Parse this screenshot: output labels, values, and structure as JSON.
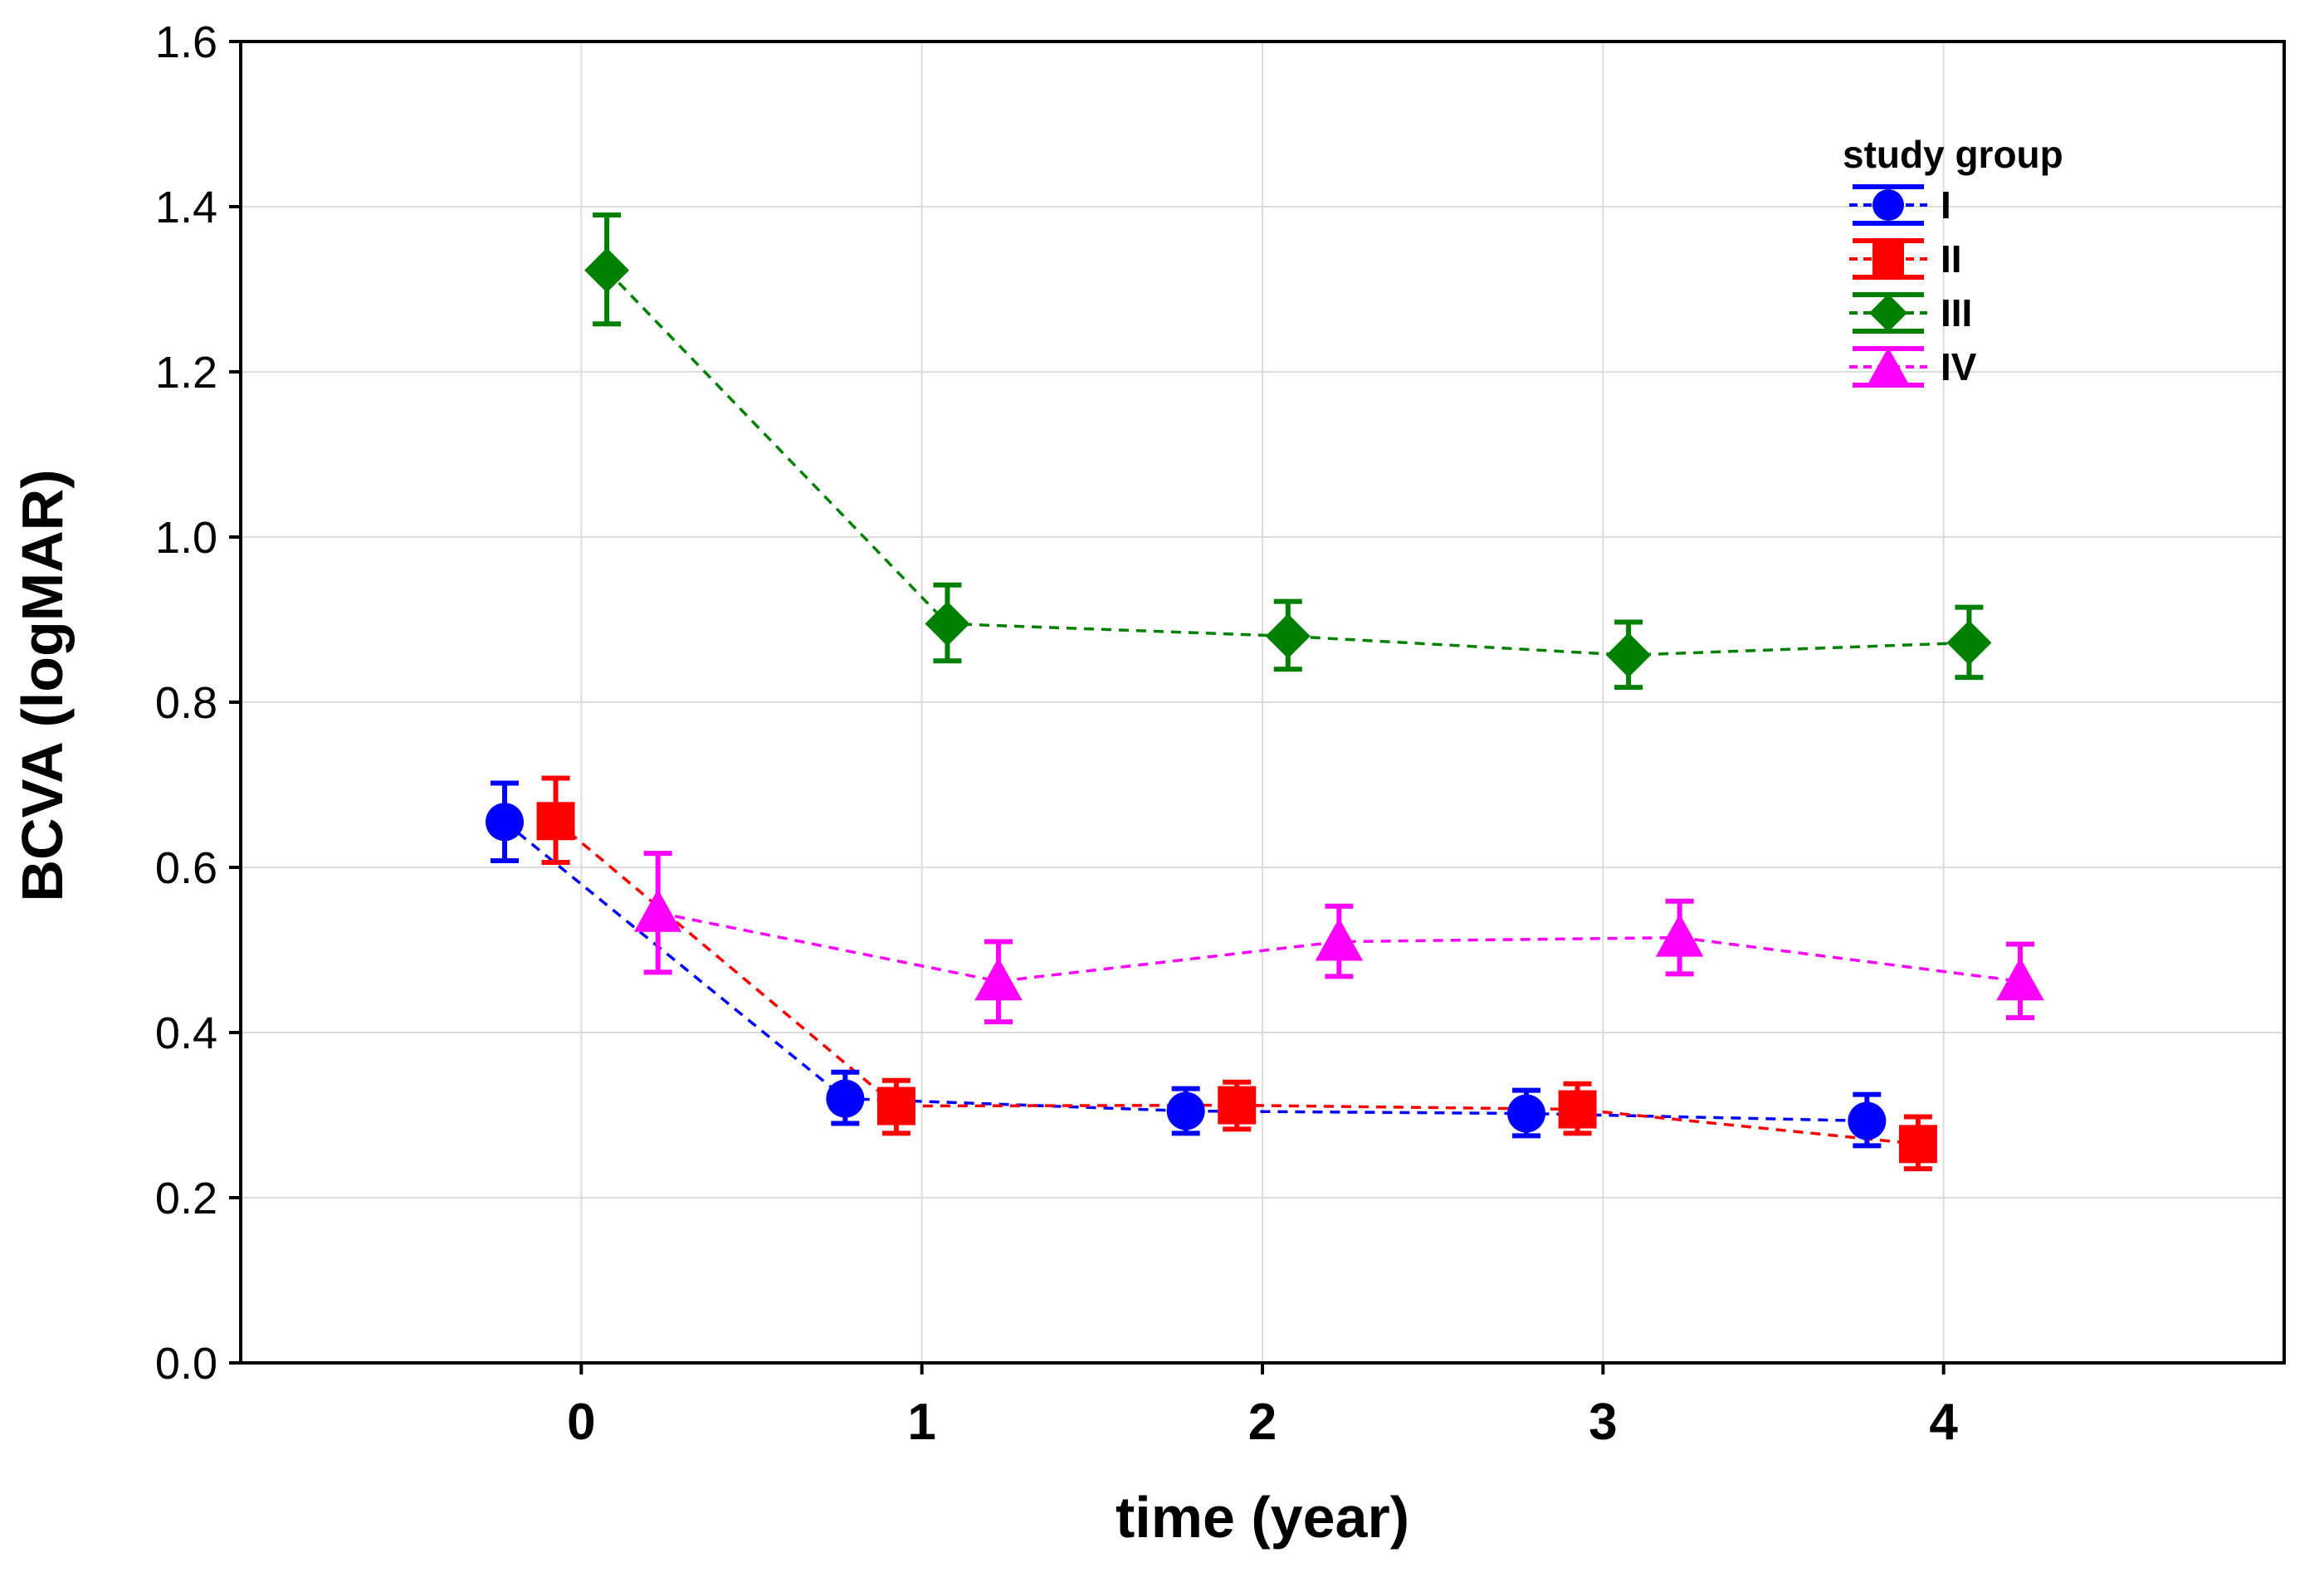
{
  "chart_data": {
    "type": "line",
    "title": "",
    "xlabel": "time (year)",
    "ylabel": "BCVA (logMAR)",
    "x": [
      0,
      1,
      2,
      3,
      4
    ],
    "x_tick_labels": [
      "0",
      "1",
      "2",
      "3",
      "4"
    ],
    "xlim": [
      -1,
      5
    ],
    "ylim": [
      0.0,
      1.6
    ],
    "y_ticks": [
      0.0,
      0.2,
      0.4,
      0.6,
      0.8,
      1.0,
      1.2,
      1.4,
      1.6
    ],
    "y_tick_labels": [
      "0.0",
      "0.2",
      "0.4",
      "0.6",
      "0.8",
      "1.0",
      "1.2",
      "1.4",
      "1.6"
    ],
    "grid": true,
    "legend": {
      "title": "study group",
      "position": "top-right"
    },
    "error_bars": true,
    "series": [
      {
        "name": "I",
        "color": "#0000ff",
        "marker": "circle",
        "dodge": -0.225,
        "values": [
          0.655,
          0.32,
          0.305,
          0.302,
          0.293
        ],
        "lower": [
          0.608,
          0.29,
          0.278,
          0.275,
          0.263
        ],
        "upper": [
          0.702,
          0.352,
          0.332,
          0.33,
          0.325
        ]
      },
      {
        "name": "II",
        "color": "#ff0000",
        "marker": "square",
        "dodge": -0.075,
        "values": [
          0.656,
          0.311,
          0.312,
          0.307,
          0.265
        ],
        "lower": [
          0.606,
          0.278,
          0.283,
          0.278,
          0.235
        ],
        "upper": [
          0.708,
          0.342,
          0.34,
          0.338,
          0.298
        ]
      },
      {
        "name": "III",
        "color": "#008000",
        "marker": "diamond",
        "dodge": 0.075,
        "values": [
          1.323,
          0.895,
          0.88,
          0.857,
          0.872
        ],
        "lower": [
          1.258,
          0.85,
          0.84,
          0.818,
          0.83
        ],
        "upper": [
          1.39,
          0.942,
          0.922,
          0.897,
          0.915
        ]
      },
      {
        "name": "IV",
        "color": "#ff00ff",
        "marker": "triangle",
        "dodge": 0.225,
        "values": [
          0.545,
          0.462,
          0.51,
          0.515,
          0.462
        ],
        "lower": [
          0.473,
          0.413,
          0.468,
          0.471,
          0.418
        ],
        "upper": [
          0.617,
          0.51,
          0.553,
          0.559,
          0.507
        ]
      }
    ]
  }
}
